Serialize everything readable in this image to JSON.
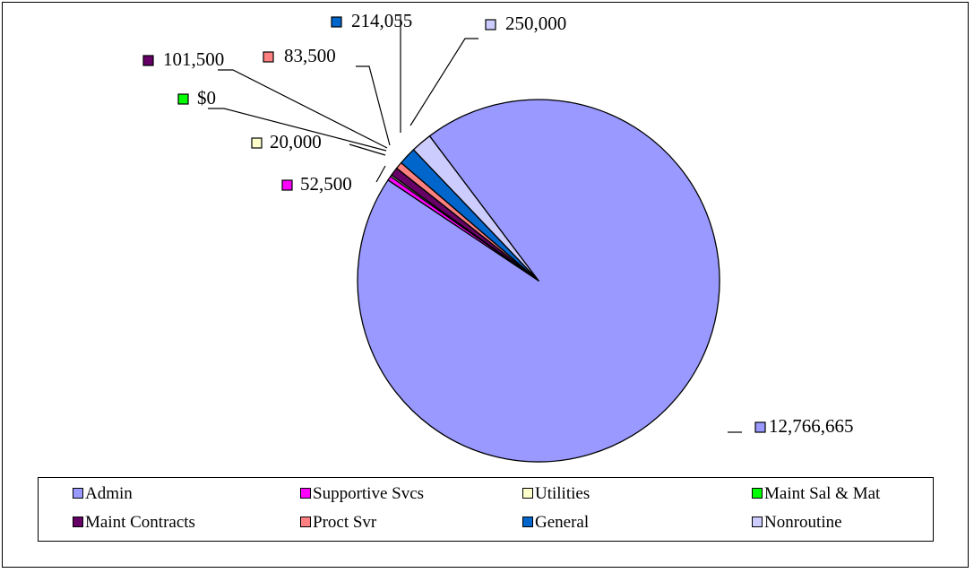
{
  "chart_data": {
    "type": "pie",
    "title": "",
    "start_angle_deg": 323,
    "slices": [
      {
        "label": "Admin",
        "value": 12766665,
        "display": "12,766,665",
        "color": "#9999FF"
      },
      {
        "label": "Supportive Svcs",
        "value": 52500,
        "display": "52,500",
        "color": "#FF00FF"
      },
      {
        "label": "Utilities",
        "value": 20000,
        "display": "20,000",
        "color": "#FFFFCC"
      },
      {
        "label": "Maint Sal & Mat",
        "value": 0,
        "display": "$0",
        "color": "#00FF00"
      },
      {
        "label": "Maint Contracts",
        "value": 101500,
        "display": "101,500",
        "color": "#660066"
      },
      {
        "label": "Proct Svr",
        "value": 83500,
        "display": "83,500",
        "color": "#FF8080"
      },
      {
        "label": "General",
        "value": 214055,
        "display": "214,055",
        "color": "#0066CC"
      },
      {
        "label": "Nonroutine",
        "value": 250000,
        "display": "250,000",
        "color": "#CCCCFF"
      }
    ],
    "legend_position": "bottom"
  }
}
